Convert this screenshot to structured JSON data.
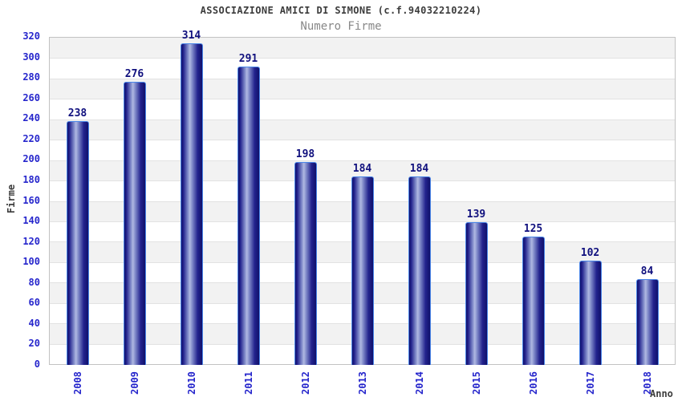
{
  "chart_data": {
    "type": "bar",
    "title": "ASSOCIAZIONE AMICI DI SIMONE (c.f.94032210224)",
    "subtitle": "Numero Firme",
    "xlabel": "Anno",
    "ylabel": "Firme",
    "categories": [
      "2008",
      "2009",
      "2010",
      "2011",
      "2012",
      "2013",
      "2014",
      "2015",
      "2016",
      "2017",
      "2018"
    ],
    "values": [
      238,
      276,
      314,
      291,
      198,
      184,
      184,
      139,
      125,
      102,
      84
    ],
    "ylim": [
      0,
      320
    ],
    "ytick_step": 20,
    "grid": "horizontal alternating bands",
    "legend_position": "none",
    "colors": {
      "axis_tick_text": "#2626cc",
      "value_label_text": "#10107e",
      "title_text": "#3c3c3c",
      "subtitle_text": "#888888",
      "band_fill": "#f2f2f2",
      "gridline": "#e2e2e2",
      "plot_border": "#c2c2c2",
      "bar_dark": "#10106a",
      "bar_mid": "#23238e",
      "bar_light": "#b0b8e2",
      "bar_border": "#4a86e8"
    }
  }
}
